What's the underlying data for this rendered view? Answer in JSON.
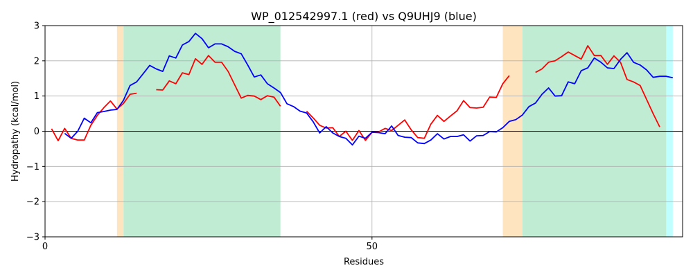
{
  "chart_data": {
    "type": "line",
    "title": "WP_012542997.1 (red) vs Q9UHJ9 (blue)",
    "xlabel": "Residues",
    "ylabel": "Hydropathy (kcal/mol)",
    "xlim": [
      0,
      97.5
    ],
    "ylim": [
      -3,
      3
    ],
    "xticks": [
      0,
      50
    ],
    "yticks": [
      -3,
      -2,
      -1,
      0,
      1,
      2,
      3
    ],
    "grid": true,
    "zero_line": true,
    "regions": [
      {
        "start": 11,
        "end": 12,
        "color": "#ffe4c0"
      },
      {
        "start": 12,
        "end": 36,
        "color": "#c0ecd4"
      },
      {
        "start": 70,
        "end": 73,
        "color": "#ffe4c0"
      },
      {
        "start": 73,
        "end": 95,
        "color": "#c0ecd4"
      },
      {
        "start": 95,
        "end": 96,
        "color": "#c0ffff"
      }
    ],
    "series": [
      {
        "color": "#ff0000",
        "segments": [
          [
            [
              1,
              0.07
            ],
            [
              2,
              -0.27
            ],
            [
              3,
              0.08
            ],
            [
              4,
              -0.2
            ],
            [
              5,
              -0.25
            ],
            [
              6,
              -0.25
            ],
            [
              7,
              0.17
            ],
            [
              8,
              0.45
            ],
            [
              9,
              0.67
            ],
            [
              10,
              0.86
            ],
            [
              11,
              0.63
            ],
            [
              12,
              0.79
            ],
            [
              13,
              1.05
            ],
            [
              14,
              1.08
            ]
          ],
          [
            [
              17,
              1.18
            ],
            [
              18,
              1.17
            ],
            [
              19,
              1.43
            ],
            [
              20,
              1.35
            ],
            [
              21,
              1.66
            ],
            [
              22,
              1.61
            ],
            [
              23,
              2.06
            ],
            [
              24,
              1.9
            ],
            [
              25,
              2.15
            ],
            [
              26,
              1.96
            ],
            [
              27,
              1.96
            ],
            [
              28,
              1.7
            ],
            [
              29,
              1.32
            ],
            [
              30,
              0.94
            ],
            [
              31,
              1.02
            ],
            [
              32,
              1.0
            ],
            [
              33,
              0.9
            ],
            [
              34,
              1.01
            ],
            [
              35,
              0.97
            ],
            [
              36,
              0.71
            ]
          ],
          [
            [
              40,
              0.57
            ],
            [
              41,
              0.38
            ],
            [
              42,
              0.17
            ],
            [
              43,
              0.09
            ],
            [
              44,
              0.1
            ],
            [
              45,
              -0.15
            ],
            [
              46,
              0.0
            ],
            [
              47,
              -0.26
            ],
            [
              48,
              0.02
            ],
            [
              49,
              -0.26
            ],
            [
              50,
              -0.03
            ],
            [
              51,
              -0.02
            ],
            [
              52,
              0.08
            ],
            [
              53,
              0.02
            ],
            [
              54,
              0.17
            ],
            [
              55,
              0.32
            ],
            [
              56,
              0.04
            ],
            [
              57,
              -0.18
            ],
            [
              58,
              -0.2
            ],
            [
              59,
              0.2
            ],
            [
              60,
              0.45
            ],
            [
              61,
              0.28
            ],
            [
              62,
              0.43
            ],
            [
              63,
              0.58
            ],
            [
              64,
              0.87
            ],
            [
              65,
              0.67
            ],
            [
              66,
              0.66
            ],
            [
              67,
              0.68
            ],
            [
              68,
              0.97
            ],
            [
              69,
              0.96
            ],
            [
              70,
              1.35
            ],
            [
              71,
              1.58
            ]
          ],
          [
            [
              75,
              1.67
            ],
            [
              76,
              1.77
            ],
            [
              77,
              1.96
            ],
            [
              78,
              2.0
            ],
            [
              79,
              2.12
            ],
            [
              80,
              2.25
            ],
            [
              81,
              2.15
            ],
            [
              82,
              2.05
            ],
            [
              83,
              2.43
            ],
            [
              84,
              2.15
            ],
            [
              85,
              2.15
            ],
            [
              86,
              1.9
            ],
            [
              87,
              2.14
            ],
            [
              88,
              1.96
            ],
            [
              89,
              1.47
            ],
            [
              90,
              1.4
            ],
            [
              91,
              1.3
            ],
            [
              92,
              0.9
            ],
            [
              93,
              0.5
            ],
            [
              94,
              0.12
            ]
          ]
        ]
      },
      {
        "color": "#0000ff",
        "segments": [
          [
            [
              3,
              -0.06
            ],
            [
              4,
              -0.2
            ],
            [
              5,
              0.0
            ],
            [
              6,
              0.37
            ],
            [
              7,
              0.24
            ],
            [
              8,
              0.53
            ],
            [
              9,
              0.56
            ],
            [
              10,
              0.6
            ],
            [
              11,
              0.62
            ],
            [
              12,
              0.88
            ],
            [
              13,
              1.3
            ],
            [
              14,
              1.4
            ],
            [
              15,
              1.63
            ],
            [
              16,
              1.87
            ],
            [
              17,
              1.77
            ],
            [
              18,
              1.7
            ],
            [
              19,
              2.14
            ],
            [
              20,
              2.08
            ],
            [
              21,
              2.45
            ],
            [
              22,
              2.55
            ],
            [
              23,
              2.78
            ],
            [
              24,
              2.63
            ],
            [
              25,
              2.37
            ],
            [
              26,
              2.48
            ],
            [
              27,
              2.48
            ],
            [
              28,
              2.4
            ],
            [
              29,
              2.27
            ],
            [
              30,
              2.2
            ],
            [
              31,
              1.88
            ],
            [
              32,
              1.54
            ],
            [
              33,
              1.6
            ],
            [
              34,
              1.35
            ],
            [
              35,
              1.23
            ],
            [
              36,
              1.1
            ],
            [
              37,
              0.78
            ],
            [
              38,
              0.7
            ],
            [
              39,
              0.57
            ],
            [
              40,
              0.52
            ],
            [
              41,
              0.27
            ],
            [
              42,
              -0.05
            ],
            [
              43,
              0.13
            ],
            [
              44,
              -0.05
            ],
            [
              45,
              -0.15
            ],
            [
              46,
              -0.2
            ],
            [
              47,
              -0.39
            ],
            [
              48,
              -0.14
            ],
            [
              49,
              -0.2
            ],
            [
              50,
              -0.03
            ],
            [
              51,
              -0.04
            ],
            [
              52,
              -0.07
            ],
            [
              53,
              0.15
            ],
            [
              54,
              -0.12
            ],
            [
              55,
              -0.17
            ],
            [
              56,
              -0.18
            ],
            [
              57,
              -0.33
            ],
            [
              58,
              -0.35
            ],
            [
              59,
              -0.25
            ],
            [
              60,
              -0.07
            ],
            [
              61,
              -0.22
            ],
            [
              62,
              -0.15
            ],
            [
              63,
              -0.15
            ],
            [
              64,
              -0.1
            ],
            [
              65,
              -0.28
            ],
            [
              66,
              -0.13
            ],
            [
              67,
              -0.12
            ],
            [
              68,
              -0.01
            ],
            [
              69,
              -0.02
            ],
            [
              70,
              0.1
            ],
            [
              71,
              0.28
            ],
            [
              72,
              0.33
            ],
            [
              73,
              0.46
            ],
            [
              74,
              0.7
            ],
            [
              75,
              0.8
            ],
            [
              76,
              1.05
            ],
            [
              77,
              1.23
            ],
            [
              78,
              1.0
            ],
            [
              79,
              1.01
            ],
            [
              80,
              1.4
            ],
            [
              81,
              1.35
            ],
            [
              82,
              1.72
            ],
            [
              83,
              1.8
            ],
            [
              84,
              2.08
            ],
            [
              85,
              1.96
            ],
            [
              86,
              1.8
            ],
            [
              87,
              1.78
            ],
            [
              88,
              2.04
            ],
            [
              89,
              2.23
            ],
            [
              90,
              1.96
            ],
            [
              91,
              1.88
            ],
            [
              92,
              1.74
            ],
            [
              93,
              1.53
            ],
            [
              94,
              1.56
            ],
            [
              95,
              1.56
            ],
            [
              96,
              1.52
            ]
          ]
        ]
      }
    ]
  }
}
